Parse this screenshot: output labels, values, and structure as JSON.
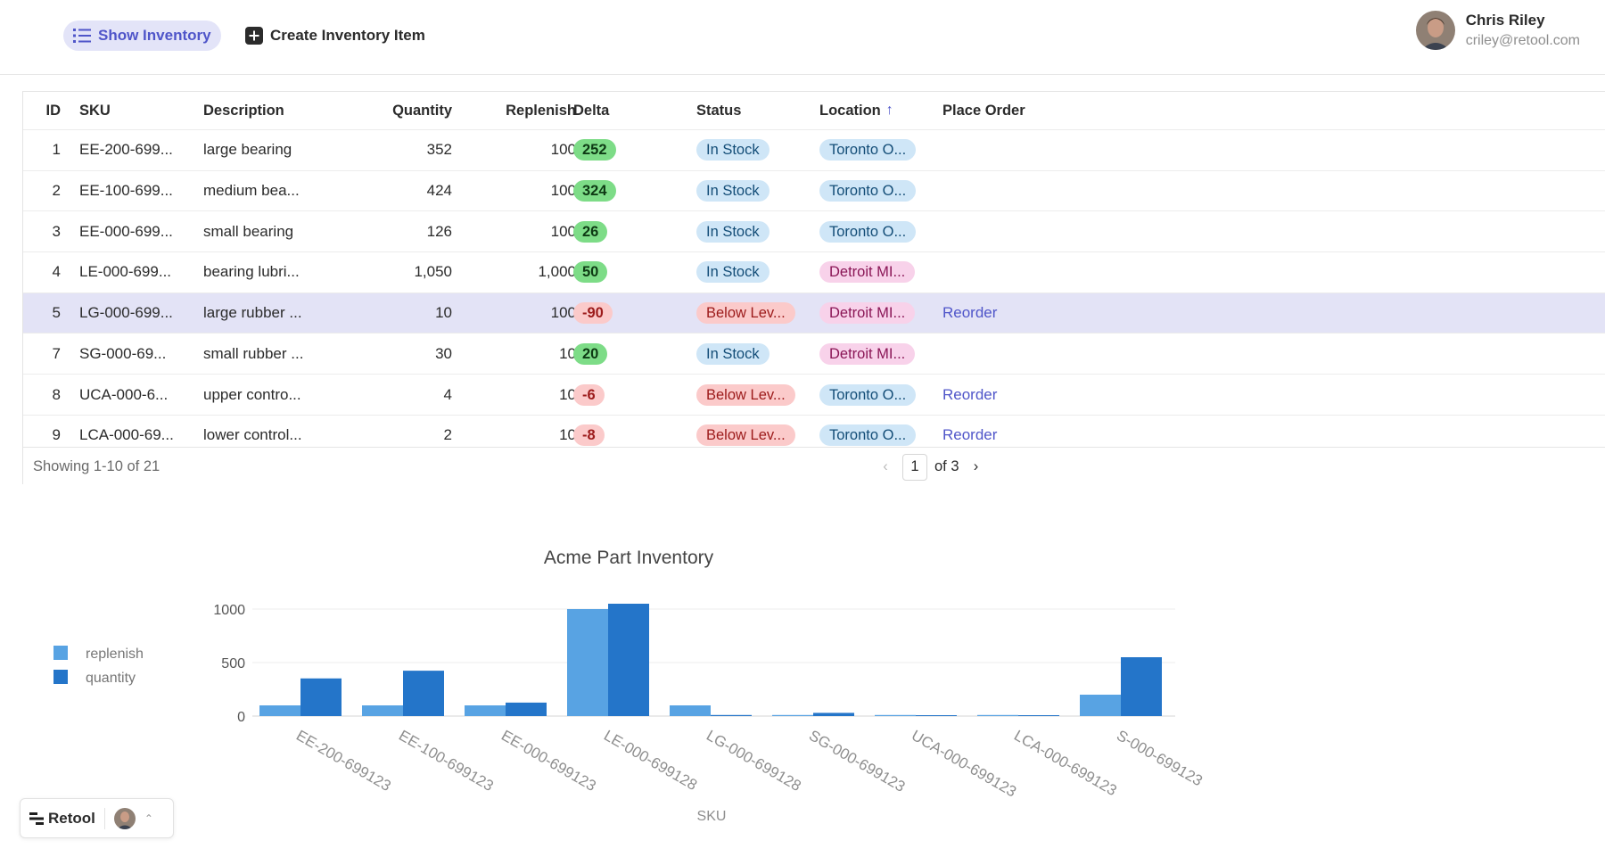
{
  "header": {
    "show_inventory_label": "Show Inventory",
    "create_item_label": "Create Inventory Item",
    "user": {
      "name": "Chris Riley",
      "email": "criley@retool.com"
    }
  },
  "table": {
    "columns": {
      "id": "ID",
      "sku": "SKU",
      "description": "Description",
      "quantity": "Quantity",
      "replenish": "Replenish",
      "delta": "Delta",
      "status": "Status",
      "location": "Location",
      "place_order": "Place Order"
    },
    "rows": [
      {
        "id": "1",
        "sku": "EE-200-699...",
        "description": "large bearing",
        "quantity": "352",
        "replenish": "100",
        "delta": "252",
        "status": "In Stock",
        "location": "Toronto O...",
        "order": ""
      },
      {
        "id": "2",
        "sku": "EE-100-699...",
        "description": "medium bea...",
        "quantity": "424",
        "replenish": "100",
        "delta": "324",
        "status": "In Stock",
        "location": "Toronto O...",
        "order": ""
      },
      {
        "id": "3",
        "sku": "EE-000-699...",
        "description": "small bearing",
        "quantity": "126",
        "replenish": "100",
        "delta": "26",
        "status": "In Stock",
        "location": "Toronto O...",
        "order": ""
      },
      {
        "id": "4",
        "sku": "LE-000-699...",
        "description": "bearing lubri...",
        "quantity": "1,050",
        "replenish": "1,000",
        "delta": "50",
        "status": "In Stock",
        "location": "Detroit MI...",
        "order": ""
      },
      {
        "id": "5",
        "sku": "LG-000-699...",
        "description": "large rubber ...",
        "quantity": "10",
        "replenish": "100",
        "delta": "-90",
        "status": "Below Lev...",
        "location": "Detroit MI...",
        "order": "Reorder"
      },
      {
        "id": "7",
        "sku": "SG-000-69...",
        "description": "small rubber ...",
        "quantity": "30",
        "replenish": "10",
        "delta": "20",
        "status": "In Stock",
        "location": "Detroit MI...",
        "order": ""
      },
      {
        "id": "8",
        "sku": "UCA-000-6...",
        "description": "upper contro...",
        "quantity": "4",
        "replenish": "10",
        "delta": "-6",
        "status": "Below Lev...",
        "location": "Toronto O...",
        "order": "Reorder"
      },
      {
        "id": "9",
        "sku": "LCA-000-69...",
        "description": "lower control...",
        "quantity": "2",
        "replenish": "10",
        "delta": "-8",
        "status": "Below Lev...",
        "location": "Toronto O...",
        "order": "Reorder"
      }
    ],
    "footer": {
      "showing": "Showing 1-10 of 21",
      "page": "1",
      "of_pages": "of 3"
    }
  },
  "chart_data": {
    "type": "bar",
    "title": "Acme Part Inventory",
    "xlabel": "SKU",
    "ylabel": "",
    "ylim": [
      0,
      1100
    ],
    "yticks": [
      0,
      500,
      1000
    ],
    "categories": [
      "EE-200-699123",
      "EE-100-699123",
      "EE-000-699123",
      "LE-000-699128",
      "LG-000-699128",
      "SG-000-699123",
      "UCA-000-699123",
      "LCA-000-699123",
      "S-000-699123"
    ],
    "series": [
      {
        "name": "replenish",
        "color": "#58a3e3",
        "values": [
          100,
          100,
          100,
          1000,
          100,
          10,
          10,
          10,
          200
        ]
      },
      {
        "name": "quantity",
        "color": "#2475c9",
        "values": [
          352,
          424,
          126,
          1050,
          10,
          30,
          4,
          2,
          550
        ]
      }
    ],
    "legend_position": "left"
  },
  "retool_bar": {
    "brand": "Retool"
  },
  "colors": {
    "accent": "#4f55c9",
    "selected_row": "#e3e3f6"
  }
}
